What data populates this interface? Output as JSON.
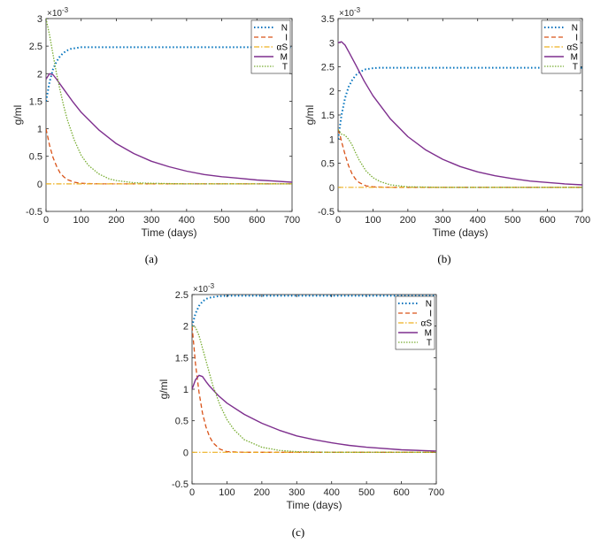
{
  "chart_data": [
    {
      "panel": "(a)",
      "type": "line",
      "xlabel": "Time (days)",
      "ylabel": "g/ml",
      "multiplier": "×10",
      "multiplier_exp": "-3",
      "xlim": [
        0,
        700
      ],
      "ylim": [
        -0.5,
        3
      ],
      "xticks": [
        "0",
        "100",
        "200",
        "300",
        "400",
        "500",
        "600",
        "700"
      ],
      "yticks": [
        "-0.5",
        "0",
        "0.5",
        "1",
        "1.5",
        "2",
        "2.5",
        "3"
      ],
      "legend_position": "top-right",
      "series": [
        {
          "name": "N",
          "x": [
            0,
            10,
            20,
            30,
            40,
            50,
            60,
            70,
            80,
            90,
            100,
            120,
            150,
            200,
            300,
            400,
            500,
            600,
            700
          ],
          "y": [
            1.5,
            1.85,
            2.08,
            2.22,
            2.32,
            2.38,
            2.42,
            2.45,
            2.46,
            2.47,
            2.48,
            2.48,
            2.48,
            2.48,
            2.48,
            2.48,
            2.48,
            2.48,
            2.48
          ]
        },
        {
          "name": "I",
          "x": [
            0,
            5,
            10,
            20,
            30,
            40,
            50,
            60,
            80,
            100,
            150,
            200,
            300,
            700
          ],
          "y": [
            1.0,
            0.85,
            0.7,
            0.48,
            0.32,
            0.2,
            0.13,
            0.08,
            0.03,
            0.01,
            0,
            0,
            0,
            0
          ]
        },
        {
          "name": "αS",
          "x": [
            0,
            700
          ],
          "y": [
            0,
            0
          ]
        },
        {
          "name": "M",
          "x": [
            0,
            10,
            20,
            30,
            50,
            75,
            100,
            150,
            200,
            250,
            300,
            350,
            400,
            450,
            500,
            550,
            600,
            650,
            700
          ],
          "y": [
            1.9,
            2.0,
            1.98,
            1.9,
            1.72,
            1.5,
            1.3,
            0.98,
            0.73,
            0.55,
            0.41,
            0.31,
            0.23,
            0.17,
            0.13,
            0.1,
            0.07,
            0.05,
            0.03
          ]
        },
        {
          "name": "T",
          "x": [
            0,
            10,
            20,
            30,
            40,
            50,
            60,
            80,
            100,
            120,
            150,
            180,
            200,
            250,
            300,
            400,
            500,
            700
          ],
          "y": [
            3.0,
            2.7,
            2.35,
            2.0,
            1.7,
            1.42,
            1.18,
            0.8,
            0.52,
            0.34,
            0.18,
            0.09,
            0.06,
            0.02,
            0.01,
            0,
            0,
            0
          ]
        }
      ]
    },
    {
      "panel": "(b)",
      "type": "line",
      "xlabel": "Time (days)",
      "ylabel": "g/ml",
      "multiplier": "×10",
      "multiplier_exp": "-3",
      "xlim": [
        0,
        700
      ],
      "ylim": [
        -0.5,
        3.5
      ],
      "xticks": [
        "0",
        "100",
        "200",
        "300",
        "400",
        "500",
        "600",
        "700"
      ],
      "yticks": [
        "-0.5",
        "0",
        "0.5",
        "1",
        "1.5",
        "2",
        "2.5",
        "3",
        "3.5"
      ],
      "legend_position": "top-right",
      "series": [
        {
          "name": "N",
          "x": [
            0,
            10,
            20,
            30,
            40,
            50,
            60,
            70,
            80,
            90,
            100,
            120,
            150,
            200,
            300,
            400,
            500,
            600,
            700
          ],
          "y": [
            1.0,
            1.5,
            1.85,
            2.08,
            2.22,
            2.32,
            2.38,
            2.42,
            2.45,
            2.46,
            2.47,
            2.48,
            2.48,
            2.48,
            2.48,
            2.48,
            2.48,
            2.48,
            2.48
          ]
        },
        {
          "name": "I",
          "x": [
            0,
            5,
            10,
            20,
            30,
            40,
            50,
            60,
            80,
            100,
            150,
            200,
            700
          ],
          "y": [
            1.2,
            1.1,
            0.95,
            0.68,
            0.45,
            0.28,
            0.17,
            0.1,
            0.03,
            0.01,
            0,
            0,
            0
          ]
        },
        {
          "name": "αS",
          "x": [
            0,
            700
          ],
          "y": [
            0,
            0
          ]
        },
        {
          "name": "M",
          "x": [
            0,
            10,
            20,
            30,
            50,
            75,
            100,
            150,
            200,
            250,
            300,
            350,
            400,
            450,
            500,
            550,
            600,
            650,
            700
          ],
          "y": [
            3.0,
            3.02,
            2.95,
            2.82,
            2.55,
            2.2,
            1.9,
            1.42,
            1.05,
            0.78,
            0.58,
            0.43,
            0.32,
            0.24,
            0.18,
            0.13,
            0.1,
            0.07,
            0.05
          ]
        },
        {
          "name": "T",
          "x": [
            0,
            10,
            20,
            30,
            40,
            50,
            60,
            80,
            100,
            120,
            150,
            200,
            300,
            700
          ],
          "y": [
            1.2,
            1.1,
            1.08,
            1.0,
            0.88,
            0.72,
            0.57,
            0.34,
            0.2,
            0.12,
            0.05,
            0.01,
            0,
            0
          ]
        }
      ]
    },
    {
      "panel": "(c)",
      "type": "line",
      "xlabel": "Time (days)",
      "ylabel": "g/ml",
      "multiplier": "×10",
      "multiplier_exp": "-3",
      "xlim": [
        0,
        700
      ],
      "ylim": [
        -0.5,
        2.5
      ],
      "xticks": [
        "0",
        "100",
        "200",
        "300",
        "400",
        "500",
        "600",
        "700"
      ],
      "yticks": [
        "-0.5",
        "0",
        "0.5",
        "1",
        "1.5",
        "2",
        "2.5"
      ],
      "legend_position": "top-right",
      "series": [
        {
          "name": "N",
          "x": [
            0,
            10,
            20,
            30,
            40,
            50,
            60,
            70,
            80,
            100,
            120,
            150,
            200,
            300,
            700
          ],
          "y": [
            2.0,
            2.2,
            2.32,
            2.39,
            2.43,
            2.45,
            2.46,
            2.47,
            2.475,
            2.48,
            2.48,
            2.48,
            2.48,
            2.48,
            2.48
          ]
        },
        {
          "name": "I",
          "x": [
            0,
            5,
            10,
            20,
            30,
            40,
            50,
            60,
            80,
            100,
            150,
            200,
            700
          ],
          "y": [
            2.0,
            1.7,
            1.4,
            0.95,
            0.62,
            0.4,
            0.25,
            0.15,
            0.05,
            0.01,
            0,
            0,
            0
          ]
        },
        {
          "name": "αS",
          "x": [
            0,
            700
          ],
          "y": [
            0,
            0
          ]
        },
        {
          "name": "M",
          "x": [
            0,
            10,
            20,
            30,
            40,
            50,
            75,
            100,
            150,
            200,
            250,
            300,
            350,
            400,
            450,
            500,
            600,
            700
          ],
          "y": [
            1.0,
            1.15,
            1.22,
            1.2,
            1.12,
            1.05,
            0.9,
            0.78,
            0.6,
            0.46,
            0.35,
            0.26,
            0.2,
            0.15,
            0.11,
            0.08,
            0.04,
            0.02
          ]
        },
        {
          "name": "T",
          "x": [
            0,
            10,
            20,
            30,
            40,
            50,
            60,
            80,
            100,
            120,
            150,
            200,
            250,
            300,
            400,
            700
          ],
          "y": [
            2.0,
            1.98,
            1.85,
            1.65,
            1.45,
            1.25,
            1.05,
            0.75,
            0.52,
            0.36,
            0.2,
            0.08,
            0.03,
            0.01,
            0,
            0
          ]
        }
      ]
    }
  ],
  "colors": {
    "N": "#0072BD",
    "I": "#D95319",
    "αS": "#EDB120",
    "M": "#7E2F8E",
    "T": "#77AC30",
    "axis": "#262626"
  }
}
